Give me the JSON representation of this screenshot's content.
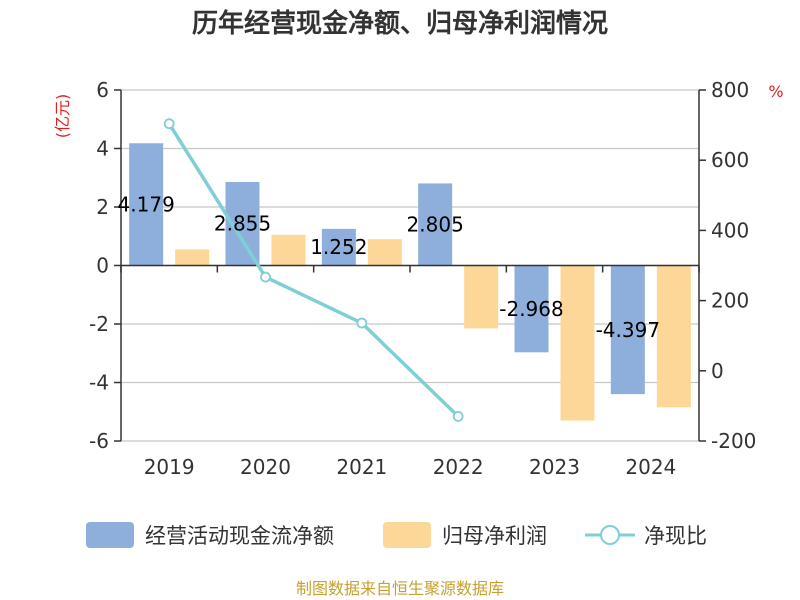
{
  "chart_data": {
    "type": "bar",
    "title": "历年经营现金净额、归母净利润情况",
    "categories": [
      "2019",
      "2020",
      "2021",
      "2022",
      "2023",
      "2024"
    ],
    "left_axis": {
      "unit": "(亿元)",
      "range": [
        -6,
        6
      ],
      "ticks": [
        6,
        4,
        2,
        0,
        -2,
        -4,
        -6
      ]
    },
    "right_axis": {
      "unit": "%",
      "range": [
        -200,
        800
      ],
      "ticks": [
        800,
        600,
        400,
        200,
        0,
        -200
      ]
    },
    "series": [
      {
        "name": "经营活动现金流净额",
        "kind": "bar",
        "axis": "left",
        "color": "#8eaedc",
        "values": [
          4.179,
          2.855,
          1.252,
          2.805,
          -2.968,
          -4.397
        ],
        "labels": [
          "4.179",
          "2.855",
          "1.252",
          "2.805",
          "-2.968",
          "-4.397"
        ]
      },
      {
        "name": "归母净利润",
        "kind": "bar",
        "axis": "left",
        "color": "#fdd797",
        "values": [
          0.55,
          1.05,
          0.9,
          -2.15,
          -5.3,
          -4.85
        ]
      },
      {
        "name": "净现比",
        "kind": "line",
        "axis": "right",
        "color": "#7ecfd6",
        "values": [
          704,
          267,
          136,
          -130,
          null,
          null
        ]
      }
    ],
    "grid": true,
    "legend": "bottom"
  },
  "source": "制图数据来自恒生聚源数据库"
}
